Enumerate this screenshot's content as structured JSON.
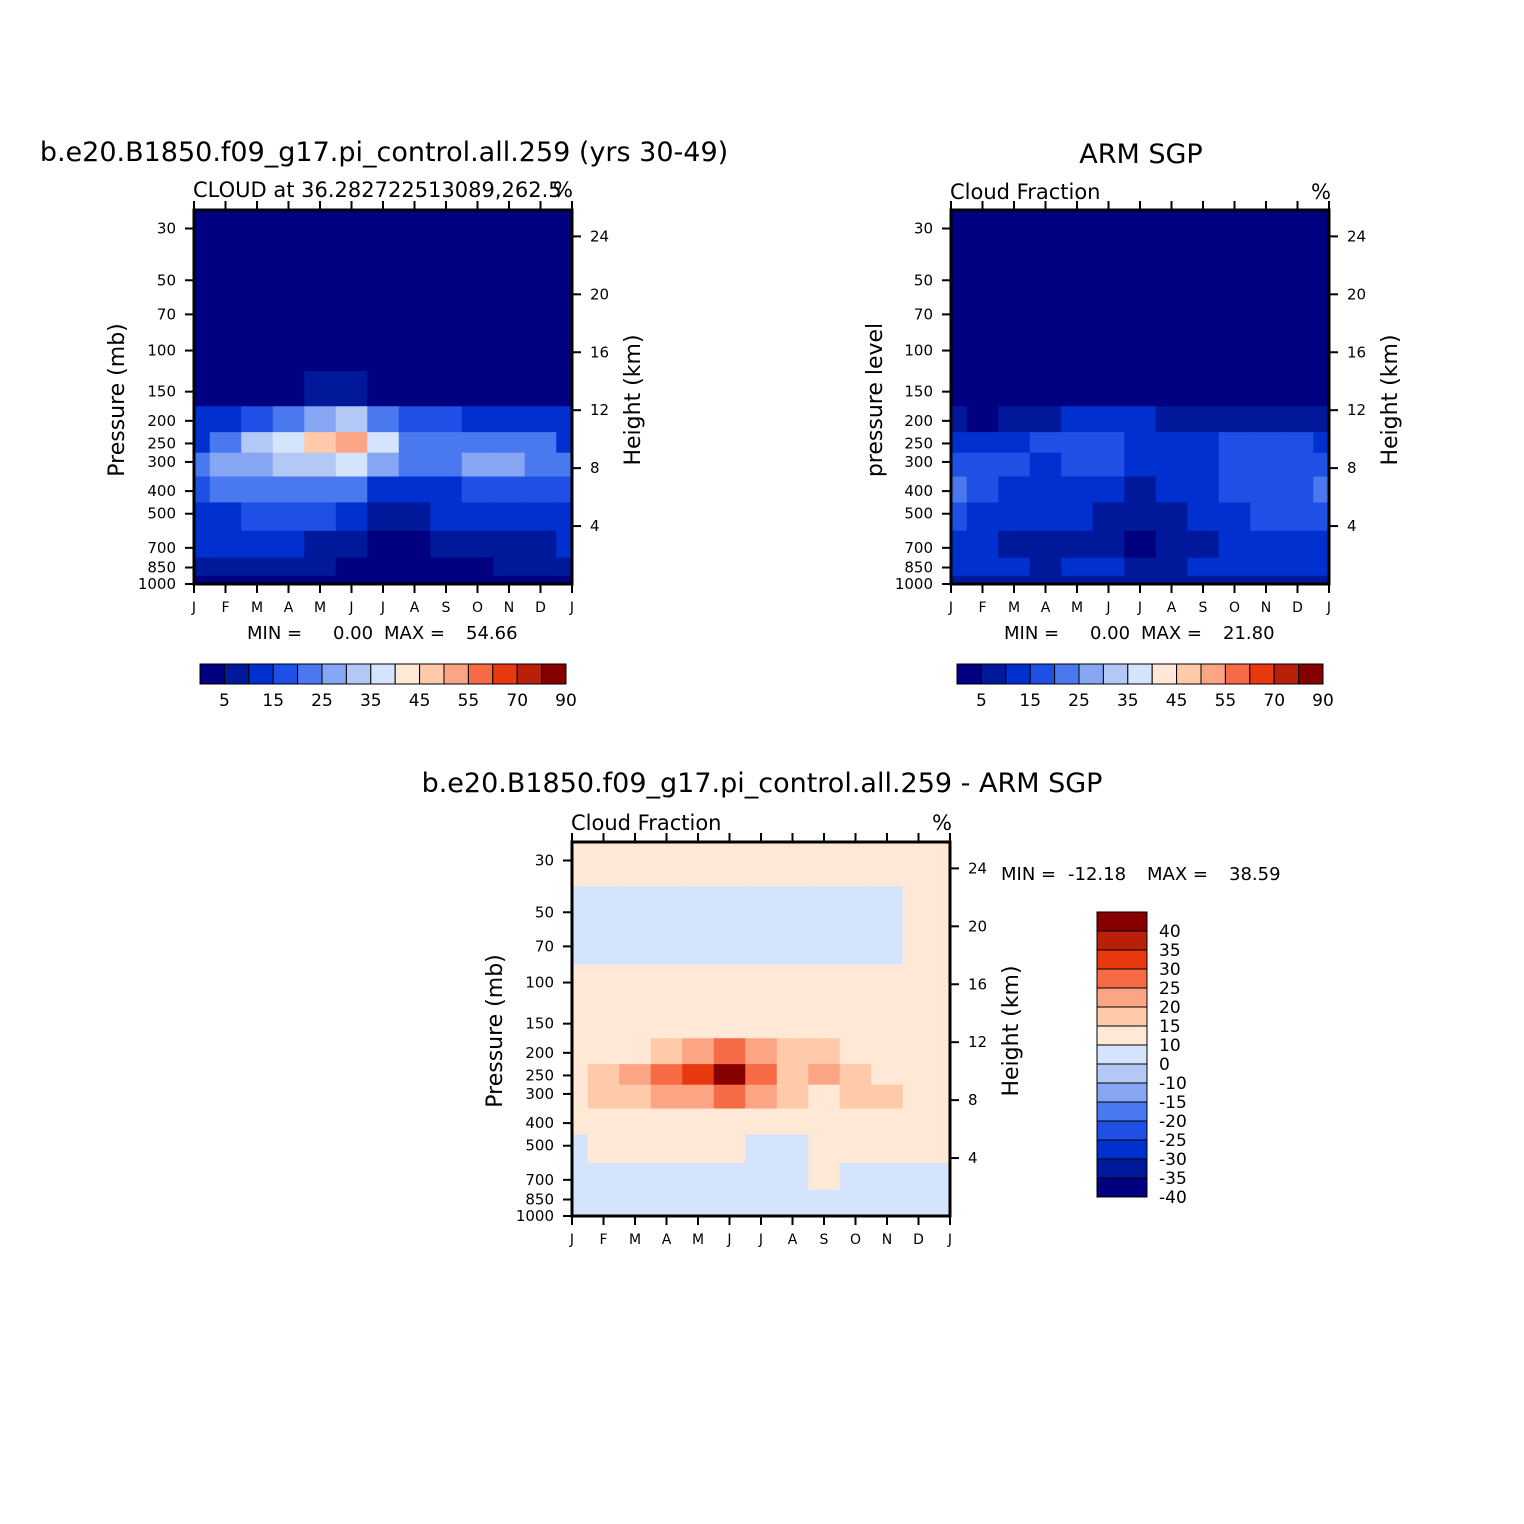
{
  "colors": {
    "model_scale": [
      "#000080",
      "#00189a",
      "#0030d0",
      "#1e50e6",
      "#4a78ef",
      "#86a6f4",
      "#b4c8f6",
      "#d4e4fc",
      "#ffe8d6",
      "#ffcaaa",
      "#fca584",
      "#f66a46",
      "#e8380e",
      "#b8200a",
      "#860000"
    ],
    "diff_scale": [
      "#000080",
      "#00189a",
      "#0030d0",
      "#1e50e6",
      "#4a78ef",
      "#86a6f4",
      "#b4c8f6",
      "#d4e4fc",
      "#ffe8d6",
      "#ffcaaa",
      "#fca584",
      "#f66a46",
      "#e8380e",
      "#b8200a",
      "#860000"
    ]
  },
  "chart_data": [
    {
      "type": "heatmap",
      "id": "model",
      "title": "b.e20.B1850.f09_g17.pi_control.all.259 (yrs 30-49)",
      "subtitle_left": "CLOUD at 36.282722513089,262.5",
      "subtitle_right": "%",
      "ylabel": "Pressure (mb)",
      "ylabel_right": "Height (km)",
      "x_ticks": [
        "J",
        "F",
        "M",
        "A",
        "M",
        "J",
        "J",
        "A",
        "S",
        "O",
        "N",
        "D",
        "J"
      ],
      "y_ticks": [
        "30",
        "50",
        "70",
        "100",
        "150",
        "200",
        "250",
        "300",
        "400",
        "500",
        "700",
        "850",
        "1000"
      ],
      "y_ticks_right": [
        "24",
        "20",
        "16",
        "12",
        "8",
        "4"
      ],
      "y_scale": "log-pressure",
      "min_label": "MIN =",
      "min_value": "0.00",
      "max_label": "MAX =",
      "max_value": "54.66",
      "colorbar_labels": [
        "5",
        "15",
        "25",
        "35",
        "45",
        "55",
        "70",
        "90"
      ],
      "colorbar_levels": [
        0,
        5,
        10,
        15,
        20,
        25,
        30,
        35,
        40,
        45,
        50,
        55,
        60,
        70,
        80,
        90
      ],
      "months": [
        1,
        2,
        3,
        4,
        5,
        6,
        7,
        8,
        9,
        10,
        11,
        12,
        13
      ],
      "pressure_levels": [
        30,
        50,
        70,
        100,
        150,
        200,
        250,
        300,
        400,
        500,
        700,
        850,
        1000
      ],
      "values": [
        [
          0,
          0,
          0,
          0,
          0,
          0,
          0,
          0,
          0,
          0,
          0,
          0,
          0
        ],
        [
          0,
          0,
          0,
          0,
          0,
          0,
          0,
          0,
          0,
          0,
          0,
          0,
          0
        ],
        [
          0,
          0,
          0,
          0,
          0,
          0,
          0,
          0,
          0,
          0,
          0,
          0,
          0
        ],
        [
          0,
          0,
          0,
          0,
          0,
          0,
          0,
          0,
          0,
          0,
          0,
          0,
          0
        ],
        [
          1,
          2,
          3,
          4,
          5,
          6,
          4,
          3,
          3,
          2,
          2,
          3,
          1
        ],
        [
          10,
          12,
          16,
          20,
          26,
          32,
          24,
          18,
          16,
          14,
          12,
          14,
          10
        ],
        [
          14,
          22,
          32,
          38,
          45,
          53,
          36,
          24,
          22,
          24,
          24,
          22,
          14
        ],
        [
          22,
          26,
          28,
          30,
          33,
          37,
          28,
          20,
          20,
          25,
          26,
          24,
          22
        ],
        [
          18,
          20,
          21,
          22,
          22,
          20,
          12,
          10,
          14,
          16,
          18,
          18,
          18
        ],
        [
          14,
          14,
          15,
          15,
          15,
          14,
          7,
          7,
          10,
          11,
          12,
          13,
          14
        ],
        [
          10,
          10,
          10,
          10,
          9,
          8,
          3,
          3,
          5,
          7,
          8,
          9,
          10
        ],
        [
          6,
          6,
          6,
          5,
          5,
          4,
          2,
          2,
          3,
          4,
          5,
          5,
          6
        ],
        [
          3,
          3,
          3,
          3,
          3,
          2,
          1,
          1,
          2,
          2,
          3,
          3,
          3
        ]
      ]
    },
    {
      "type": "heatmap",
      "id": "obs",
      "title": "ARM SGP",
      "subtitle_left": "Cloud Fraction",
      "subtitle_right": "%",
      "ylabel": "pressure level",
      "ylabel_right": "Height (km)",
      "x_ticks": [
        "J",
        "F",
        "M",
        "A",
        "M",
        "J",
        "J",
        "A",
        "S",
        "O",
        "N",
        "D",
        "J"
      ],
      "y_ticks": [
        "30",
        "50",
        "70",
        "100",
        "150",
        "200",
        "250",
        "300",
        "400",
        "500",
        "700",
        "850",
        "1000"
      ],
      "y_ticks_right": [
        "24",
        "20",
        "16",
        "12",
        "8",
        "4"
      ],
      "y_scale": "log-pressure",
      "min_label": "MIN =",
      "min_value": "0.00",
      "max_label": "MAX =",
      "max_value": "21.80",
      "colorbar_labels": [
        "5",
        "15",
        "25",
        "35",
        "45",
        "55",
        "70",
        "90"
      ],
      "colorbar_levels": [
        0,
        5,
        10,
        15,
        20,
        25,
        30,
        35,
        40,
        45,
        50,
        55,
        60,
        70,
        80,
        90
      ],
      "months": [
        1,
        2,
        3,
        4,
        5,
        6,
        7,
        8,
        9,
        10,
        11,
        12,
        13
      ],
      "pressure_levels": [
        30,
        50,
        70,
        100,
        150,
        200,
        250,
        300,
        400,
        500,
        700,
        850,
        1000
      ],
      "values": [
        [
          0,
          0,
          0,
          0,
          0,
          0,
          0,
          0,
          0,
          0,
          0,
          0,
          0
        ],
        [
          0,
          0,
          0,
          0,
          0,
          0,
          0,
          0,
          0,
          0,
          0,
          0,
          0
        ],
        [
          0,
          0,
          0,
          0,
          0,
          0,
          0,
          0,
          0,
          0,
          0,
          0,
          0
        ],
        [
          0,
          0,
          0,
          0,
          0,
          0,
          0,
          0,
          0,
          0,
          0,
          0,
          0
        ],
        [
          0,
          0,
          0,
          1,
          2,
          3,
          3,
          2,
          1,
          0,
          0,
          0,
          0
        ],
        [
          6,
          4,
          6,
          8,
          10,
          12,
          10,
          8,
          6,
          6,
          6,
          6,
          6
        ],
        [
          12,
          12,
          14,
          15,
          18,
          18,
          12,
          10,
          14,
          16,
          16,
          16,
          14
        ],
        [
          18,
          16,
          15,
          14,
          15,
          17,
          10,
          10,
          14,
          15,
          16,
          17,
          18
        ],
        [
          21,
          16,
          14,
          14,
          13,
          12,
          9,
          10,
          13,
          15,
          16,
          18,
          20
        ],
        [
          15,
          14,
          12,
          12,
          11,
          9,
          8,
          9,
          11,
          14,
          15,
          15,
          16
        ],
        [
          10,
          10,
          8,
          8,
          8,
          7,
          3,
          5,
          8,
          12,
          13,
          12,
          11
        ],
        [
          12,
          11,
          10,
          9,
          10,
          12,
          9,
          8,
          10,
          12,
          12,
          11,
          10
        ],
        [
          5,
          6,
          6,
          5,
          6,
          6,
          5,
          5,
          6,
          7,
          8,
          6,
          5
        ]
      ]
    },
    {
      "type": "heatmap",
      "id": "diff",
      "title": "b.e20.B1850.f09_g17.pi_control.all.259 - ARM SGP",
      "subtitle_left": "Cloud Fraction",
      "subtitle_right": "%",
      "ylabel": "Pressure (mb)",
      "ylabel_right": "Height (km)",
      "x_ticks": [
        "J",
        "F",
        "M",
        "A",
        "M",
        "J",
        "J",
        "A",
        "S",
        "O",
        "N",
        "D",
        "J"
      ],
      "y_ticks": [
        "30",
        "50",
        "70",
        "100",
        "150",
        "200",
        "250",
        "300",
        "400",
        "500",
        "700",
        "850",
        "1000"
      ],
      "y_ticks_right": [
        "24",
        "20",
        "16",
        "12",
        "8",
        "4"
      ],
      "y_scale": "log-pressure",
      "min_label": "MIN =",
      "min_value": "-12.18",
      "max_label": "MAX =",
      "max_value": "38.59",
      "colorbar_labels": [
        "40",
        "35",
        "30",
        "25",
        "20",
        "15",
        "10",
        "0",
        "-10",
        "-15",
        "-20",
        "-25",
        "-30",
        "-35",
        "-40"
      ],
      "colorbar_levels": [
        -40,
        -35,
        -30,
        -25,
        -20,
        -15,
        -10,
        0,
        10,
        15,
        20,
        25,
        30,
        35,
        40
      ],
      "months": [
        1,
        2,
        3,
        4,
        5,
        6,
        7,
        8,
        9,
        10,
        11,
        12,
        13
      ],
      "pressure_levels": [
        30,
        50,
        70,
        100,
        150,
        200,
        250,
        300,
        400,
        500,
        700,
        850,
        1000
      ],
      "values": [
        [
          2,
          2,
          2,
          2,
          2,
          2,
          2,
          2,
          2,
          2,
          2,
          2,
          2
        ],
        [
          -1,
          -1,
          -1,
          -1,
          -1,
          -1,
          -1,
          -1,
          -1,
          -1,
          -1,
          2,
          2
        ],
        [
          -1,
          -1,
          -1,
          -1,
          -1,
          -1,
          -1,
          -1,
          -1,
          -1,
          -1,
          2,
          2
        ],
        [
          2,
          2,
          2,
          2,
          2,
          2,
          2,
          2,
          2,
          2,
          2,
          2,
          2
        ],
        [
          2,
          2,
          2,
          2,
          3,
          4,
          3,
          2,
          2,
          2,
          2,
          2,
          2
        ],
        [
          3,
          6,
          9,
          11,
          15,
          20,
          15,
          12,
          12,
          8,
          6,
          7,
          3
        ],
        [
          3,
          12,
          17,
          21,
          28,
          36,
          23,
          14,
          19,
          10,
          9,
          9,
          4
        ],
        [
          3,
          10,
          13,
          16,
          19,
          22,
          17,
          10,
          8,
          10,
          10,
          7,
          3
        ],
        [
          1,
          4,
          6,
          7,
          8,
          8,
          3,
          1,
          2,
          3,
          4,
          3,
          1
        ],
        [
          -1,
          1,
          2,
          2,
          2,
          3,
          -1,
          -2,
          0,
          1,
          1,
          2,
          1
        ],
        [
          -1,
          -1,
          -1,
          -1,
          -1,
          -1,
          -2,
          -2,
          2,
          -2,
          -2,
          -1,
          -1
        ],
        [
          -1,
          -1,
          -1,
          -1,
          -1,
          -1,
          -1,
          -1,
          -1,
          -1,
          -2,
          -1,
          -1
        ],
        [
          -1,
          -1,
          -1,
          -1,
          -1,
          -1,
          -1,
          -1,
          -1,
          -1,
          -1,
          -1,
          -1
        ]
      ]
    }
  ]
}
